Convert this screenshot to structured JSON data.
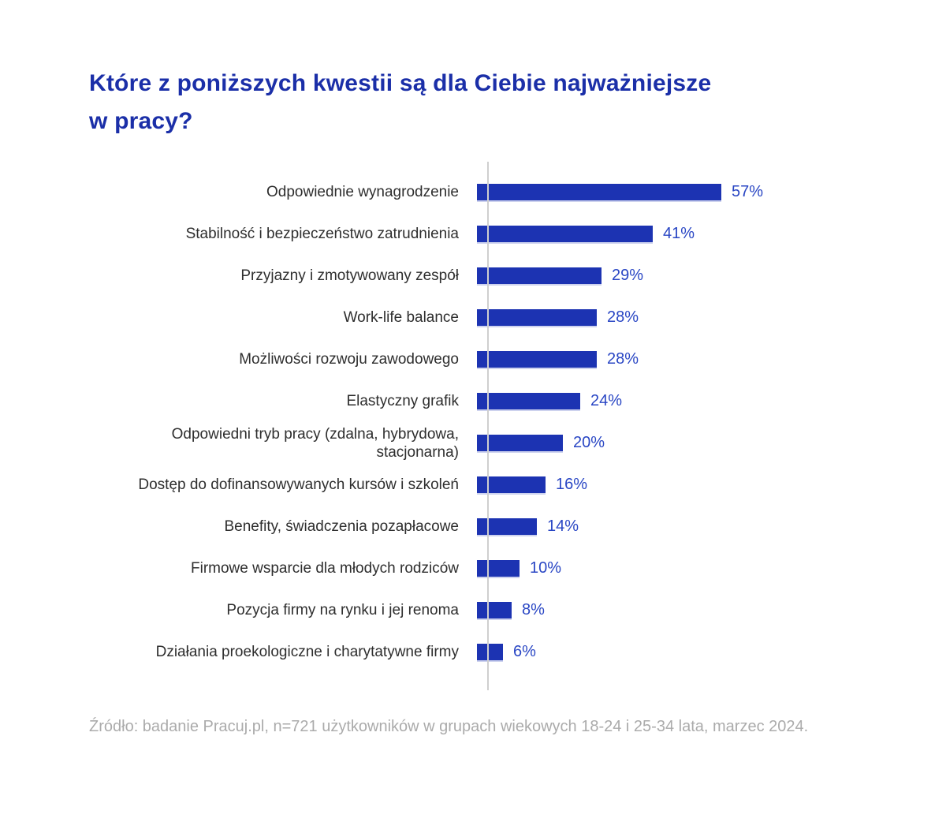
{
  "title": "Które z poniższych kwestii są dla Ciebie najważniejsze\nw pracy?",
  "source": "Źródło: badanie Pracuj.pl, n=721 użytkowników w grupach wiekowych 18-24 i 25-34 lata, marzec 2024.",
  "colors": {
    "bar": "#1c33b2",
    "title": "#1b2fa8",
    "value_label": "#2946c4",
    "category_label": "#2e2e2e",
    "source": "#ababab",
    "axis": "#cfcfcf",
    "background": "#ffffff"
  },
  "chart_data": {
    "type": "bar",
    "orientation": "horizontal",
    "title": "Które z poniższych kwestii są dla Ciebie najważniejsze w pracy?",
    "xlabel": "",
    "ylabel": "",
    "value_suffix": "%",
    "xlim": [
      0,
      60
    ],
    "grid": false,
    "legend": "none",
    "categories": [
      "Odpowiednie wynagrodzenie",
      "Stabilność i bezpieczeństwo zatrudnienia",
      "Przyjazny i zmotywowany zespół",
      "Work-life balance",
      "Możliwości rozwoju zawodowego",
      "Elastyczny grafik",
      "Odpowiedni tryb pracy (zdalna, hybrydowa, stacjonarna)",
      "Dostęp do dofinansowywanych kursów i szkoleń",
      "Benefity, świadczenia pozapłacowe",
      "Firmowe wsparcie dla młodych rodziców",
      "Pozycja firmy na rynku i jej renoma",
      "Działania proekologiczne i charytatywne firmy"
    ],
    "values": [
      57,
      41,
      29,
      28,
      28,
      24,
      20,
      16,
      14,
      10,
      8,
      6
    ],
    "value_labels": [
      "57%",
      "41%",
      "29%",
      "28%",
      "28%",
      "24%",
      "20%",
      "16%",
      "14%",
      "10%",
      "8%",
      "6%"
    ]
  }
}
